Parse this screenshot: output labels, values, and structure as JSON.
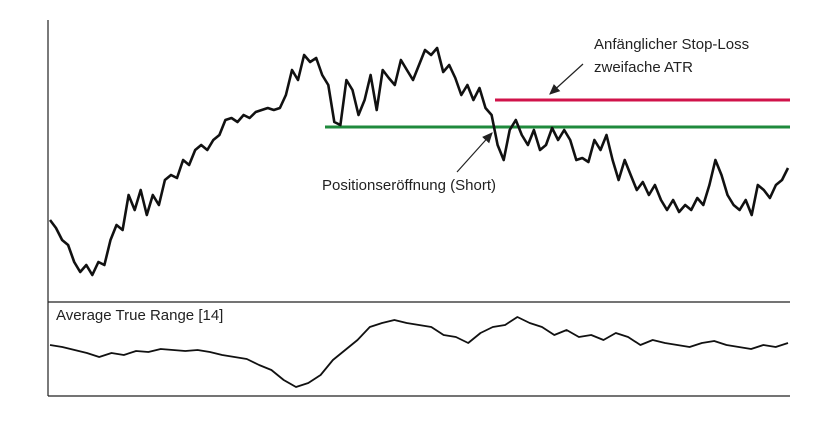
{
  "chart_data": [
    {
      "type": "line",
      "series": [
        {
          "color": "#111111",
          "values": [
            80,
            72,
            60,
            55,
            38,
            28,
            35,
            25,
            38,
            35,
            60,
            75,
            70,
            105,
            90,
            110,
            85,
            105,
            95,
            120,
            125,
            122,
            140,
            135,
            150,
            155,
            150,
            160,
            165,
            180,
            182,
            178,
            185,
            182,
            188,
            190,
            192,
            190,
            192,
            205,
            230,
            220,
            245,
            238,
            242,
            225,
            215,
            178,
            175,
            220,
            210,
            185,
            200,
            225,
            190,
            230,
            222,
            215,
            240,
            230,
            220,
            235,
            250,
            245,
            252,
            228,
            235,
            222,
            205,
            215,
            200,
            212,
            192,
            185,
            155,
            140,
            170,
            180,
            165,
            155,
            170,
            150,
            155,
            172,
            160,
            170,
            160,
            140,
            142,
            138,
            160,
            150,
            165,
            140,
            120,
            140,
            125,
            110,
            118,
            105,
            115,
            100,
            90,
            100,
            88,
            95,
            90,
            102,
            95,
            115,
            140,
            125,
            105,
            95,
            90,
            100,
            85,
            115,
            110,
            102,
            115,
            120,
            132
          ]
        }
      ],
      "ylim": [
        0,
        280
      ],
      "hlines": [
        {
          "value": 200,
          "color": "#d0134a"
        },
        {
          "value": 173,
          "color": "#1f8a3c"
        }
      ],
      "annotations": [
        "Anfänglicher Stop-Loss",
        "zweifache ATR",
        "Positionseröffnung (Short)"
      ]
    },
    {
      "type": "line",
      "title": "Average True Range [14]",
      "series": [
        {
          "color": "#111111",
          "values": [
            50,
            48,
            45,
            42,
            38,
            42,
            40,
            44,
            43,
            46,
            45,
            44,
            45,
            43,
            40,
            38,
            36,
            30,
            25,
            15,
            8,
            12,
            20,
            35,
            45,
            55,
            68,
            72,
            75,
            72,
            70,
            68,
            60,
            58,
            52,
            62,
            68,
            70,
            78,
            72,
            68,
            60,
            65,
            58,
            60,
            55,
            62,
            58,
            50,
            55,
            52,
            50,
            48,
            52,
            54,
            50,
            48,
            46,
            50,
            48,
            52
          ]
        }
      ],
      "ylim": [
        0,
        90
      ]
    }
  ]
}
